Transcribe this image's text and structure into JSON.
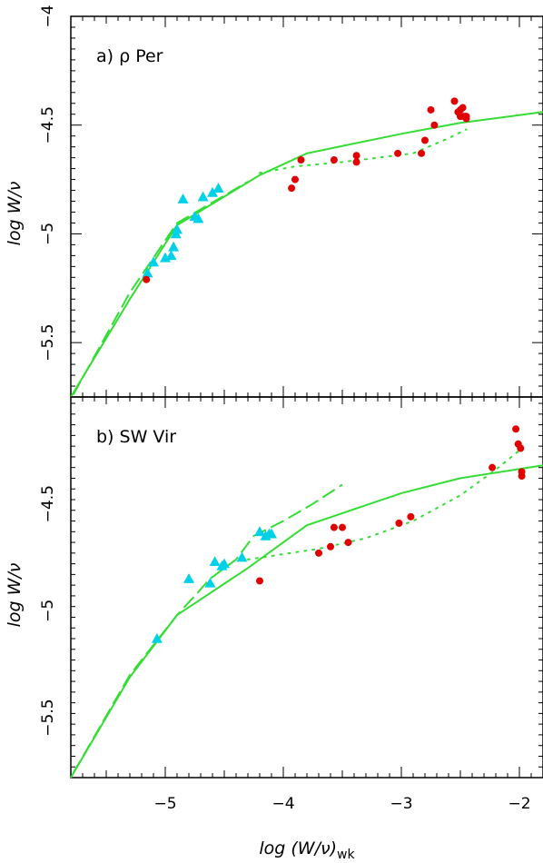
{
  "figure": {
    "xlabel": "log (W/ν)",
    "xlabel_sub": "wk",
    "ylabel": "log W/ν",
    "colors": {
      "model": "#33dd33",
      "triangles": "#00d0e8",
      "circles": "#e00000",
      "frame": "#000000"
    }
  },
  "chart_data": [
    {
      "type": "scatter",
      "panel_label": "a)  ρ  Per",
      "xlim": [
        -5.8,
        -1.8
      ],
      "ylim": [
        -5.75,
        -4.0
      ],
      "x_ticks": [
        -5,
        -4,
        -3,
        -2
      ],
      "y_tick_labels": [
        {
          "value": -4.0,
          "label": "−4"
        },
        {
          "value": -4.5,
          "label": "−4.5"
        },
        {
          "value": -5.0,
          "label": "−5"
        },
        {
          "value": -5.5,
          "label": "−5.5"
        }
      ],
      "series": [
        {
          "kind": "solid",
          "points": [
            [
              -5.8,
              -5.75
            ],
            [
              -5.3,
              -5.3
            ],
            [
              -4.9,
              -4.96
            ],
            [
              -4.2,
              -4.73
            ],
            [
              -3.8,
              -4.63
            ],
            [
              -3,
              -4.54
            ],
            [
              -2.5,
              -4.49
            ],
            [
              -1.8,
              -4.44
            ]
          ]
        },
        {
          "kind": "dashed",
          "points": [
            [
              -5.78,
              -5.74
            ],
            [
              -5.3,
              -5.27
            ],
            [
              -4.9,
              -4.95
            ],
            [
              -4.55,
              -4.84
            ],
            [
              -4.3,
              -4.76
            ]
          ]
        },
        {
          "kind": "dotted",
          "points": [
            [
              -4.2,
              -4.72
            ],
            [
              -3.9,
              -4.69
            ],
            [
              -3.5,
              -4.67
            ],
            [
              -3.2,
              -4.65
            ],
            [
              -2.9,
              -4.63
            ],
            [
              -2.6,
              -4.56
            ],
            [
              -2.45,
              -4.52
            ]
          ]
        },
        {
          "kind": "triangles",
          "points": [
            [
              -5.15,
              -5.18
            ],
            [
              -5.1,
              -5.13
            ],
            [
              -5.0,
              -5.11
            ],
            [
              -4.95,
              -5.1
            ],
            [
              -4.93,
              -5.06
            ],
            [
              -4.91,
              -5.0
            ],
            [
              -4.9,
              -4.98
            ],
            [
              -4.85,
              -4.84
            ],
            [
              -4.75,
              -4.92
            ],
            [
              -4.72,
              -4.93
            ],
            [
              -4.68,
              -4.83
            ],
            [
              -4.6,
              -4.81
            ],
            [
              -4.55,
              -4.79
            ]
          ]
        },
        {
          "kind": "circles",
          "points": [
            [
              -5.16,
              -5.21
            ],
            [
              -3.93,
              -4.79
            ],
            [
              -3.9,
              -4.75
            ],
            [
              -3.85,
              -4.66
            ],
            [
              -3.57,
              -4.66
            ],
            [
              -3.38,
              -4.64
            ],
            [
              -3.38,
              -4.67
            ],
            [
              -3.03,
              -4.63
            ],
            [
              -2.83,
              -4.63
            ],
            [
              -2.8,
              -4.57
            ],
            [
              -2.75,
              -4.43
            ],
            [
              -2.72,
              -4.5
            ],
            [
              -2.55,
              -4.39
            ],
            [
              -2.52,
              -4.44
            ],
            [
              -2.5,
              -4.43
            ],
            [
              -2.5,
              -4.46
            ],
            [
              -2.48,
              -4.42
            ],
            [
              -2.47,
              -4.46
            ],
            [
              -2.45,
              -4.46
            ],
            [
              -2.45,
              -4.47
            ]
          ]
        }
      ]
    },
    {
      "type": "scatter",
      "panel_label": "b)  SW  Vir",
      "xlim": [
        -5.8,
        -1.8
      ],
      "ylim": [
        -5.78,
        -4.0
      ],
      "x_ticks": [
        -5,
        -4,
        -3,
        -2
      ],
      "y_tick_labels": [
        {
          "value": -4.5,
          "label": "−4.5"
        },
        {
          "value": -5.0,
          "label": "−5"
        },
        {
          "value": -5.5,
          "label": "−5.5"
        }
      ],
      "series": [
        {
          "kind": "solid",
          "points": [
            [
              -5.8,
              -5.78
            ],
            [
              -5.3,
              -5.31
            ],
            [
              -4.9,
              -5.02
            ],
            [
              -4.3,
              -4.8
            ],
            [
              -3.8,
              -4.6
            ],
            [
              -3,
              -4.45
            ],
            [
              -2.5,
              -4.38
            ],
            [
              -1.8,
              -4.32
            ]
          ]
        },
        {
          "kind": "dashed",
          "points": [
            [
              -5.78,
              -5.76
            ],
            [
              -5.3,
              -5.3
            ],
            [
              -4.9,
              -5.02
            ],
            [
              -4.75,
              -4.93
            ],
            [
              -4.62,
              -4.85
            ],
            [
              -4.4,
              -4.76
            ],
            [
              -4.25,
              -4.65
            ],
            [
              -4.0,
              -4.58
            ],
            [
              -3.75,
              -4.5
            ],
            [
              -3.5,
              -4.41
            ]
          ]
        },
        {
          "kind": "dotted",
          "points": [
            [
              -4.3,
              -4.76
            ],
            [
              -3.7,
              -4.71
            ],
            [
              -3.3,
              -4.66
            ],
            [
              -2.9,
              -4.58
            ],
            [
              -2.5,
              -4.46
            ],
            [
              -2.2,
              -4.34
            ],
            [
              -2.0,
              -4.25
            ]
          ]
        },
        {
          "kind": "triangles",
          "points": [
            [
              -5.07,
              -5.13
            ],
            [
              -4.8,
              -4.85
            ],
            [
              -4.62,
              -4.87
            ],
            [
              -4.58,
              -4.77
            ],
            [
              -4.52,
              -4.79
            ],
            [
              -4.5,
              -4.78
            ],
            [
              -4.35,
              -4.75
            ],
            [
              -4.2,
              -4.63
            ],
            [
              -4.15,
              -4.65
            ],
            [
              -4.12,
              -4.64
            ],
            [
              -4.1,
              -4.64
            ]
          ]
        },
        {
          "kind": "circles",
          "points": [
            [
              -4.2,
              -4.86
            ],
            [
              -3.7,
              -4.73
            ],
            [
              -3.6,
              -4.7
            ],
            [
              -3.57,
              -4.61
            ],
            [
              -3.5,
              -4.61
            ],
            [
              -3.45,
              -4.68
            ],
            [
              -3.02,
              -4.59
            ],
            [
              -2.92,
              -4.56
            ],
            [
              -2.23,
              -4.33
            ],
            [
              -2.03,
              -4.15
            ],
            [
              -2.01,
              -4.22
            ],
            [
              -1.99,
              -4.24
            ],
            [
              -1.98,
              -4.35
            ],
            [
              -1.98,
              -4.37
            ]
          ]
        }
      ]
    }
  ]
}
